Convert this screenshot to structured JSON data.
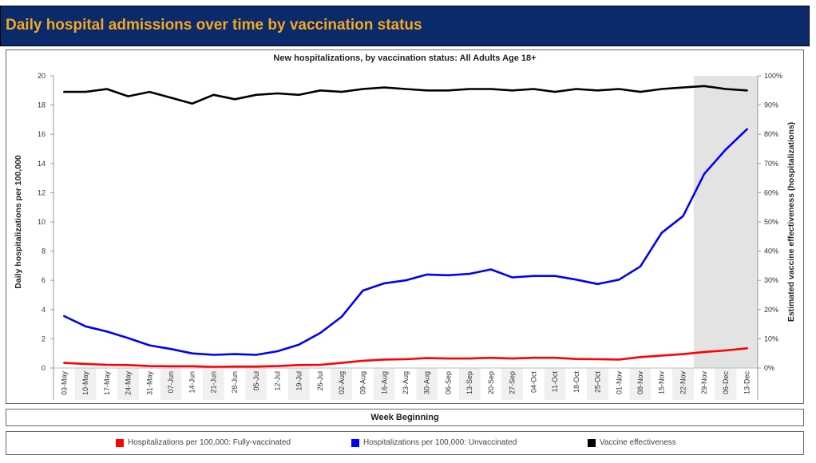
{
  "header": {
    "title": "Daily hospital admissions over time by vaccination status"
  },
  "chart_data": {
    "type": "line",
    "title": "New hospitalizations, by vaccination status: All Adults Age 18+",
    "xlabel": "Week Beginning",
    "ylabel": "Daily hospitalizations per 100,000",
    "y2label": "Estimated vaccine effectiveness (hospitalizations)",
    "ylim": [
      0,
      20
    ],
    "y2lim": [
      0,
      100
    ],
    "yticks": [
      "0",
      "2",
      "4",
      "6",
      "8",
      "10",
      "12",
      "14",
      "16",
      "18",
      "20"
    ],
    "y2ticks": [
      "0%",
      "10%",
      "20%",
      "30%",
      "40%",
      "50%",
      "60%",
      "70%",
      "80%",
      "90%",
      "100%"
    ],
    "grid": false,
    "legend_position": "bottom",
    "shaded_region": {
      "from": "29-Nov",
      "to": "13-Dec",
      "color": "#e3e3e3"
    },
    "categories": [
      "03-May",
      "10-May",
      "17-May",
      "24-May",
      "31-May",
      "07-Jun",
      "14-Jun",
      "21-Jun",
      "28-Jun",
      "05-Jul",
      "12-Jul",
      "19-Jul",
      "26-Jul",
      "02-Aug",
      "09-Aug",
      "16-Aug",
      "23-Aug",
      "30-Aug",
      "06-Sep",
      "13-Sep",
      "20-Sep",
      "27-Sep",
      "04-Oct",
      "11-Oct",
      "18-Oct",
      "25-Oct",
      "01-Nov",
      "08-Nov",
      "15-Nov",
      "22-Nov",
      "29-Nov",
      "06-Dec",
      "13-Dec"
    ],
    "series": [
      {
        "name": "Hospitalizations per 100,000: Fully-vaccinated",
        "axis": "left",
        "color": "#ff0000",
        "values": [
          0.35,
          0.28,
          0.22,
          0.2,
          0.13,
          0.12,
          0.12,
          0.08,
          0.1,
          0.1,
          0.13,
          0.2,
          0.22,
          0.35,
          0.5,
          0.58,
          0.6,
          0.68,
          0.65,
          0.65,
          0.7,
          0.65,
          0.7,
          0.7,
          0.62,
          0.6,
          0.58,
          0.75,
          0.85,
          0.95,
          1.1,
          1.2,
          1.35
        ]
      },
      {
        "name": "Hospitalizations per 100,000: Unvaccinated",
        "axis": "left",
        "color": "#0000ff",
        "values": [
          3.55,
          2.85,
          2.5,
          2.05,
          1.55,
          1.3,
          1.0,
          0.9,
          0.95,
          0.9,
          1.15,
          1.6,
          2.4,
          3.5,
          5.3,
          5.8,
          6.0,
          6.4,
          6.35,
          6.45,
          6.75,
          6.2,
          6.3,
          6.3,
          6.05,
          5.75,
          6.05,
          6.95,
          9.25,
          10.4,
          13.3,
          14.95,
          16.35
        ]
      },
      {
        "name": "Vaccine effectiveness",
        "axis": "right",
        "color": "#000000",
        "values": [
          94.5,
          94.5,
          95.5,
          93,
          94.5,
          92.5,
          90.5,
          93.5,
          92,
          93.5,
          94,
          93.5,
          95,
          94.5,
          95.5,
          96,
          95.5,
          95,
          95,
          95.5,
          95.5,
          95,
          95.5,
          94.5,
          95.5,
          95,
          95.5,
          94.5,
          95.5,
          96,
          96.5,
          95.5,
          95
        ]
      }
    ]
  }
}
